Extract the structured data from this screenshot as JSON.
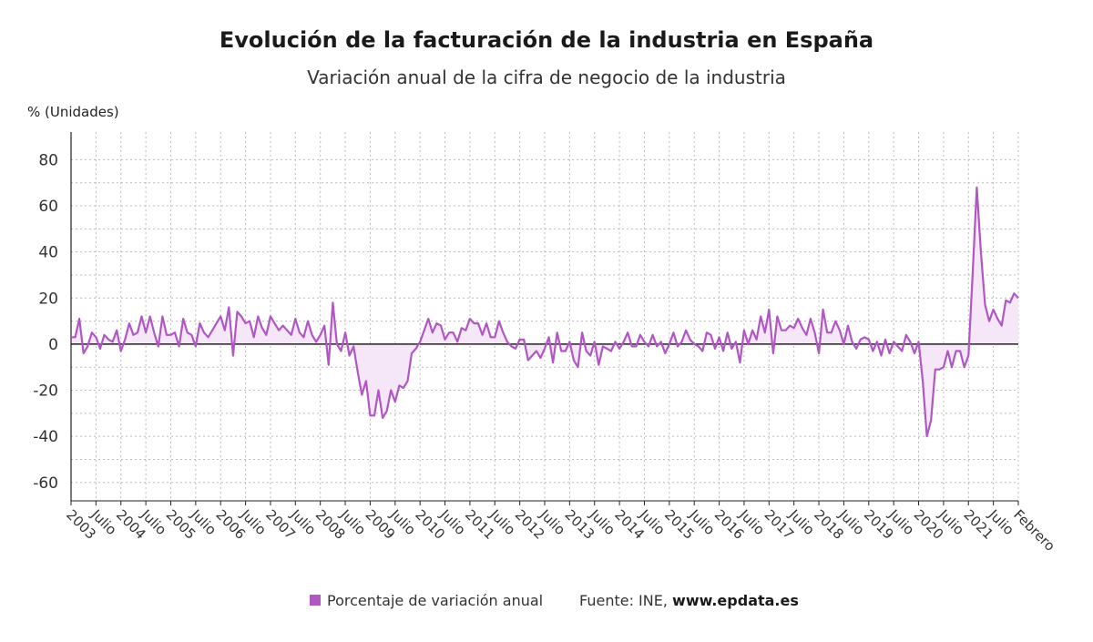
{
  "title": "Evolución de la facturación de la industria en España",
  "subtitle": "Variación anual de la cifra de negocio de la industria",
  "units_label": "% (Unidades)",
  "legend_label": "Porcentaje de variación anual",
  "source_prefix": "Fuente: INE,",
  "source_site": "www.epdata.es",
  "colors": {
    "series": "#b057c4",
    "fill": "#f5e6f8",
    "grid": "#bbbbbb",
    "axis": "#222222"
  },
  "chart_data": {
    "type": "area",
    "ylim": [
      -68,
      92
    ],
    "yticks": [
      80,
      60,
      40,
      20,
      0,
      -20,
      -40,
      -60
    ],
    "grid": true,
    "legend_position": "bottom",
    "xtick_labels": [
      "2003",
      "Julio",
      "2004",
      "Julio",
      "2005",
      "Julio",
      "2006",
      "Julio",
      "2007",
      "Julio",
      "2008",
      "Julio",
      "2009",
      "Julio",
      "2010",
      "Julio",
      "2011",
      "Julio",
      "2012",
      "Julio",
      "2013",
      "Julio",
      "2014",
      "Julio",
      "2015",
      "Julio",
      "2016",
      "Julio",
      "2017",
      "Julio",
      "2018",
      "Julio",
      "2019",
      "Julio",
      "2020",
      "Julio",
      "2021",
      "Julio",
      "Febrero"
    ],
    "series": [
      {
        "name": "Porcentaje de variación anual",
        "start": "2003-01",
        "end": "2022-02",
        "values": [
          3,
          3,
          11,
          -4,
          -1,
          5,
          3,
          -2,
          4,
          2,
          1,
          6,
          -3,
          2,
          9,
          4,
          5,
          12,
          5,
          12,
          5,
          -1,
          12,
          4,
          4,
          5,
          -1,
          11,
          5,
          4,
          -1,
          9,
          5,
          3,
          6,
          9,
          12,
          6,
          16,
          -5,
          14,
          12,
          9,
          10,
          3,
          12,
          7,
          4,
          12,
          9,
          6,
          8,
          6,
          4,
          11,
          5,
          3,
          10,
          4,
          1,
          4,
          8,
          -9,
          18,
          0,
          -3,
          5,
          -5,
          -1,
          -12,
          -22,
          -16,
          -31,
          -31,
          -20,
          -32,
          -29,
          -20,
          -25,
          -18,
          -19,
          -16,
          -4,
          -2,
          1,
          6,
          11,
          5,
          9,
          8,
          2,
          5,
          5,
          1,
          7,
          6,
          11,
          9,
          9,
          4,
          9,
          3,
          3,
          10,
          5,
          1,
          -1,
          -2,
          2,
          2,
          -7,
          -5,
          -3,
          -6,
          -2,
          3,
          -8,
          5,
          -3,
          -3,
          1,
          -7,
          -10,
          5,
          -3,
          -5,
          1,
          -9,
          -1,
          -2,
          -3,
          1,
          -2,
          1,
          5,
          -1,
          -1,
          4,
          1,
          -1,
          4,
          -1,
          1,
          -4,
          0,
          5,
          -1,
          1,
          6,
          2,
          0,
          -1,
          -3,
          5,
          4,
          -2,
          3,
          -3,
          5,
          -2,
          1,
          -8,
          6,
          0,
          6,
          2,
          12,
          5,
          15,
          -4,
          12,
          6,
          6,
          8,
          7,
          11,
          7,
          4,
          11,
          5,
          -4,
          15,
          5,
          5,
          10,
          6,
          0,
          8,
          1,
          -2,
          2,
          3,
          2,
          -3,
          1,
          -5,
          2,
          -4,
          1,
          -1,
          -3,
          4,
          1,
          -4,
          1,
          -16,
          -40,
          -33,
          -11,
          -11,
          -10,
          -3,
          -10,
          -3,
          -3,
          -10,
          -5,
          30,
          68,
          40,
          17,
          10,
          15,
          11,
          8,
          19,
          18,
          22,
          20
        ]
      }
    ]
  }
}
